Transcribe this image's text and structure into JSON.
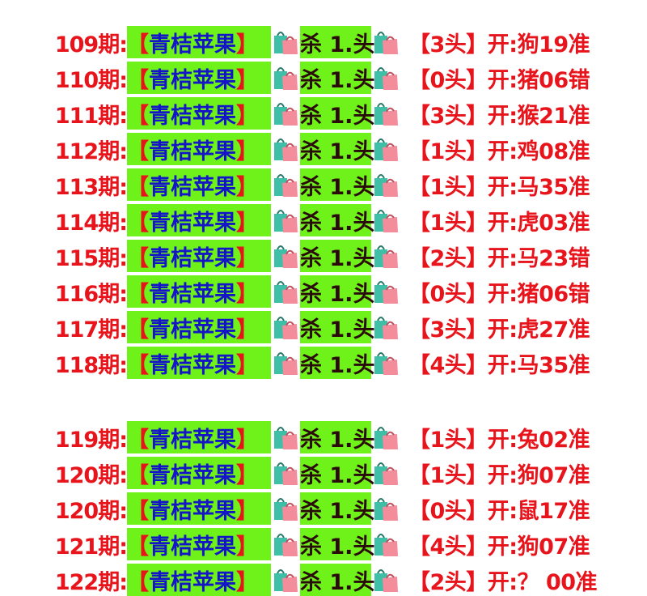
{
  "groups": [
    [
      {
        "period": "109期:",
        "tag": [
          "【",
          "青桔苹果",
          "】"
        ],
        "kill": "杀 1.头",
        "result": "【3头】开:狗19准"
      },
      {
        "period": "110期:",
        "tag": [
          "【",
          "青桔苹果",
          "】"
        ],
        "kill": "杀 1.头",
        "result": "【0头】开:猪06错"
      },
      {
        "period": "111期:",
        "tag": [
          "【",
          "青桔苹果",
          "】"
        ],
        "kill": "杀 1.头",
        "result": "【3头】开:猴21准"
      },
      {
        "period": "112期:",
        "tag": [
          "【",
          "青桔苹果",
          "】"
        ],
        "kill": "杀 1.头",
        "result": "【1头】开:鸡08准"
      },
      {
        "period": "113期:",
        "tag": [
          "【",
          "青桔苹果",
          "】"
        ],
        "kill": "杀 1.头",
        "result": "【1头】开:马35准"
      },
      {
        "period": "114期:",
        "tag": [
          "【",
          "青桔苹果",
          "】"
        ],
        "kill": "杀 1.头",
        "result": "【1头】开:虎03准"
      },
      {
        "period": "115期:",
        "tag": [
          "【",
          "青桔苹果",
          "】"
        ],
        "kill": "杀 1.头",
        "result": "【2头】开:马23错"
      },
      {
        "period": "116期:",
        "tag": [
          "【",
          "青桔苹果",
          "】"
        ],
        "kill": "杀 1.头",
        "result": "【0头】开:猪06错"
      },
      {
        "period": "117期:",
        "tag": [
          "【",
          "青桔苹果",
          "】"
        ],
        "kill": "杀 1.头",
        "result": "【3头】开:虎27准"
      },
      {
        "period": "118期:",
        "tag": [
          "【",
          "青桔苹果",
          "】"
        ],
        "kill": "杀 1.头",
        "result": "【4头】开:马35准"
      }
    ],
    [
      {
        "period": "119期:",
        "tag": [
          "【",
          "青桔苹果",
          "】"
        ],
        "kill": "杀 1.头",
        "result": "【1头】开:兔02准"
      },
      {
        "period": "120期:",
        "tag": [
          "【",
          "青桔苹果",
          "】"
        ],
        "kill": "杀 1.头",
        "result": "【1头】开:狗07准"
      },
      {
        "period": "120期:",
        "tag": [
          "【",
          "青桔苹果",
          "】"
        ],
        "kill": "杀 1.头",
        "result": "【0头】开:鼠17准"
      },
      {
        "period": "121期:",
        "tag": [
          "【",
          "青桔苹果",
          "】"
        ],
        "kill": "杀 1.头",
        "result": "【4头】开:狗07准"
      },
      {
        "period": "122期:",
        "tag": [
          "【",
          "青桔苹果",
          "】"
        ],
        "kill": "杀 1.头",
        "result": "【2头】开:？ 00准"
      }
    ]
  ]
}
